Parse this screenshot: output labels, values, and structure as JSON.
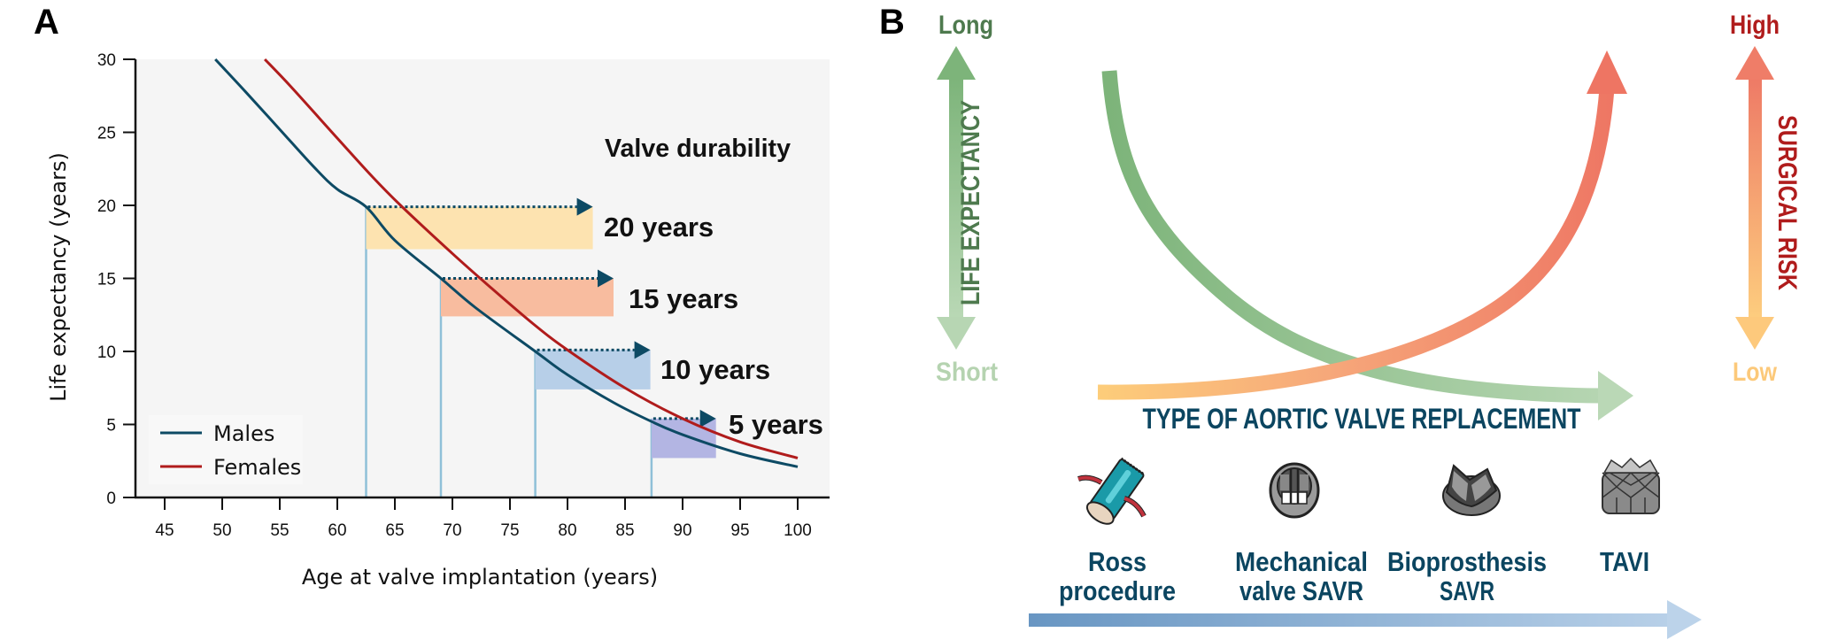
{
  "panel_a": {
    "letter": "A"
  },
  "panel_b": {
    "letter": "B",
    "left_axis": {
      "title": "LIFE EXPECTANCY",
      "top_label": "Long",
      "bottom_label": "Short"
    },
    "right_axis": {
      "title": "SURGICAL RISK",
      "top_label": "High",
      "bottom_label": "Low"
    },
    "curves": [
      {
        "name": "Life expectancy",
        "trend": "decreasing"
      },
      {
        "name": "Surgical risk",
        "trend": "increasing"
      }
    ],
    "x_title": "TYPE OF AORTIC VALVE REPLACEMENT",
    "options": [
      {
        "icon": "ross-procedure-icon",
        "line1": "Ross",
        "line2": "procedure"
      },
      {
        "icon": "mechanical-valve-icon",
        "line1": "Mechanical",
        "line2": "valve SAVR"
      },
      {
        "icon": "bioprosthesis-icon",
        "line1": "Bioprosthesis",
        "line2": "SAVR"
      },
      {
        "icon": "tavi-icon",
        "line1": "TAVI",
        "line2": ""
      }
    ]
  },
  "colors": {
    "males": "#0d4a64",
    "females": "#b01c1c",
    "green_dark": "#4e7a4e",
    "green_light": "#b7d6b4",
    "risk_high": "#b01c1c",
    "risk_low": "#fcc97a",
    "navy_text": "#0b4560"
  },
  "chart_data": {
    "type": "line",
    "title": "",
    "xlabel": "Age at valve implantation (years)",
    "ylabel": "Life expectancy (years)",
    "xlim": [
      42.5,
      102.5
    ],
    "ylim": [
      0,
      30
    ],
    "xticks": [
      45,
      50,
      55,
      60,
      65,
      70,
      75,
      80,
      85,
      90,
      95,
      100
    ],
    "yticks": [
      0,
      5,
      10,
      15,
      20,
      25,
      30
    ],
    "grid": false,
    "legend": {
      "placement": "bottom-left",
      "entries": [
        "Males",
        "Females"
      ]
    },
    "series": [
      {
        "name": "Males",
        "x": [
          49.4,
          52,
          55,
          58,
          60,
          62.5,
          65,
          69,
          72,
          77.2,
          80,
          84,
          87.3,
          90,
          95,
          100
        ],
        "y": [
          30,
          27.8,
          25.2,
          22.6,
          21.1,
          19.9,
          17.6,
          15.0,
          13.0,
          10.0,
          8.4,
          6.5,
          5.2,
          4.3,
          3.0,
          2.1
        ]
      },
      {
        "name": "Females",
        "x": [
          53.7,
          56,
          60,
          63,
          65.5,
          70,
          73,
          77,
          80,
          85,
          90,
          95,
          100
        ],
        "y": [
          30,
          28.1,
          24.6,
          22.0,
          20.0,
          16.7,
          14.6,
          11.9,
          10.1,
          7.5,
          5.4,
          3.8,
          2.7
        ]
      }
    ],
    "annotations": {
      "title": "Valve durability",
      "boxes": [
        {
          "label": "20 years",
          "durability": 20,
          "age_start": 62.5,
          "age_end": 82.2,
          "y_top": 19.9,
          "y_bottom": 17.0,
          "fill": "#fde3b0"
        },
        {
          "label": "15 years",
          "durability": 15,
          "age_start": 69.0,
          "age_end": 84.0,
          "y_top": 15.0,
          "y_bottom": 12.4,
          "fill": "#f8bc9f"
        },
        {
          "label": "10 years",
          "durability": 10,
          "age_start": 77.2,
          "age_end": 87.2,
          "y_top": 10.1,
          "y_bottom": 7.4,
          "fill": "#b7cfe8"
        },
        {
          "label": "5 years",
          "durability": 5,
          "age_start": 87.3,
          "age_end": 92.9,
          "y_top": 5.4,
          "y_bottom": 2.7,
          "fill": "#b3b5e3"
        }
      ]
    }
  }
}
